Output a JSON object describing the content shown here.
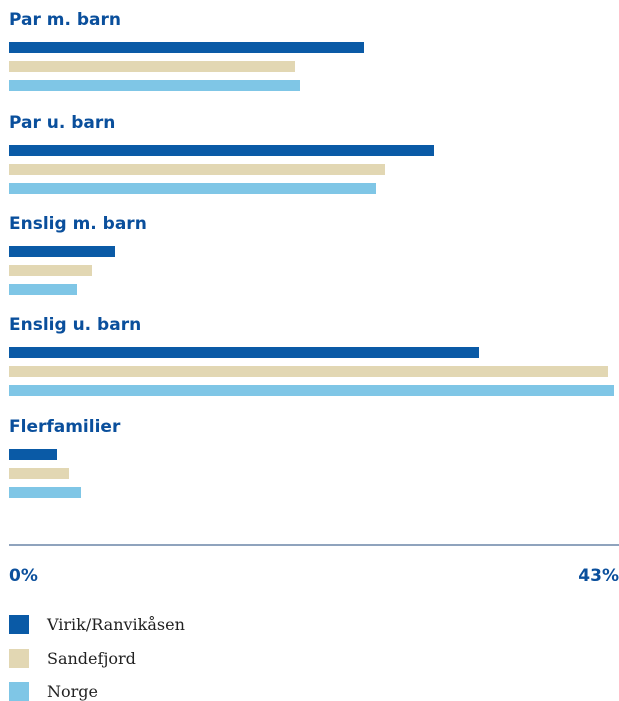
{
  "colors": {
    "label": "#0a4f9c",
    "axis": "#8fa3bd",
    "tick": "#0a4f9c"
  },
  "chart_data": {
    "type": "bar",
    "orientation": "horizontal",
    "categories": [
      "Par m. barn",
      "Par u. barn",
      "Enslig m. barn",
      "Enslig u. barn",
      "Flerfamilier"
    ],
    "series": [
      {
        "name": "Virik/Ranvikåsen",
        "color": "#0a5aa6",
        "values": [
          25.2,
          30.2,
          7.5,
          33.4,
          3.4
        ]
      },
      {
        "name": "Sandefjord",
        "color": "#e2d7b3",
        "values": [
          20.3,
          26.7,
          5.9,
          42.6,
          4.3
        ]
      },
      {
        "name": "Norge",
        "color": "#7fc6e6",
        "values": [
          20.7,
          26.1,
          4.8,
          43.0,
          5.1
        ]
      }
    ],
    "xlim": [
      0,
      43
    ],
    "tick_labels": [
      "0%",
      "43%"
    ],
    "legend_position": "bottom-left"
  }
}
